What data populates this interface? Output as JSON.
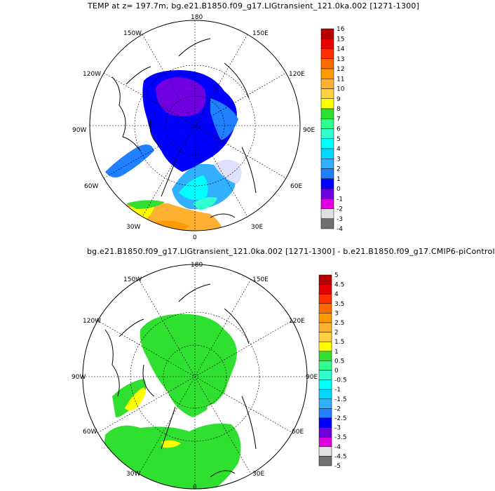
{
  "top_panel": {
    "title": "TEMP at z= 197.7m, bg.e21.B1850.f09_g17.LIGtransient_121.0ka.002 [1271-1300]",
    "lon_labels": {
      "n180": "180",
      "w150": "150W",
      "w120": "120W",
      "w90": "90W",
      "w60": "60W",
      "w30": "30W",
      "s0": "0",
      "e30": "30E",
      "e60": "60E",
      "e90": "90E",
      "e120": "120E",
      "e150": "150E"
    },
    "colorbar": {
      "labels": [
        "16",
        "15",
        "14",
        "13",
        "12",
        "11",
        "10",
        "9",
        "8",
        "7",
        "6",
        "5",
        "4",
        "3",
        "2",
        "1",
        "0",
        "-1",
        "-2",
        "-3",
        "-4"
      ],
      "colors": [
        "#b40000",
        "#e60000",
        "#ff3000",
        "#ff6a00",
        "#ff9a00",
        "#ffb030",
        "#ffd040",
        "#ffff00",
        "#30e030",
        "#30ff90",
        "#30ffd0",
        "#00ffff",
        "#00d8ff",
        "#30b0ff",
        "#2080ff",
        "#0000ff",
        "#7000e0",
        "#e000e0",
        "#e0e0e0",
        "#707070"
      ]
    }
  },
  "bottom_panel": {
    "title": "bg.e21.B1850.f09_g17.LIGtransient_121.0ka.002 [1271-1300] - b.e21.B1850.f09_g17.CMIP6-piControl",
    "lon_labels": {
      "n180": "180",
      "w150": "150W",
      "w120": "120W",
      "w90": "90W",
      "w60": "60W",
      "w30": "30W",
      "s0": "0",
      "e30": "30E",
      "e60": "60E",
      "e90": "90E",
      "e120": "120E",
      "e150": "150E"
    },
    "colorbar": {
      "labels": [
        "5",
        "4.5",
        "4",
        "3.5",
        "3",
        "2.5",
        "2",
        "1.5",
        "1",
        "0.5",
        "0",
        "-0.5",
        "-1",
        "-1.5",
        "-2",
        "-2.5",
        "-3",
        "-3.5",
        "-4",
        "-4.5",
        "-5"
      ],
      "colors": [
        "#b40000",
        "#e60000",
        "#ff3000",
        "#ff6a00",
        "#ff9a00",
        "#ffb030",
        "#ffd040",
        "#ffff00",
        "#30e030",
        "#30ff90",
        "#30ffd0",
        "#00ffff",
        "#00d8ff",
        "#30b0ff",
        "#2080ff",
        "#0000ff",
        "#7000e0",
        "#e000e0",
        "#e0e0e0",
        "#707070"
      ]
    }
  }
}
